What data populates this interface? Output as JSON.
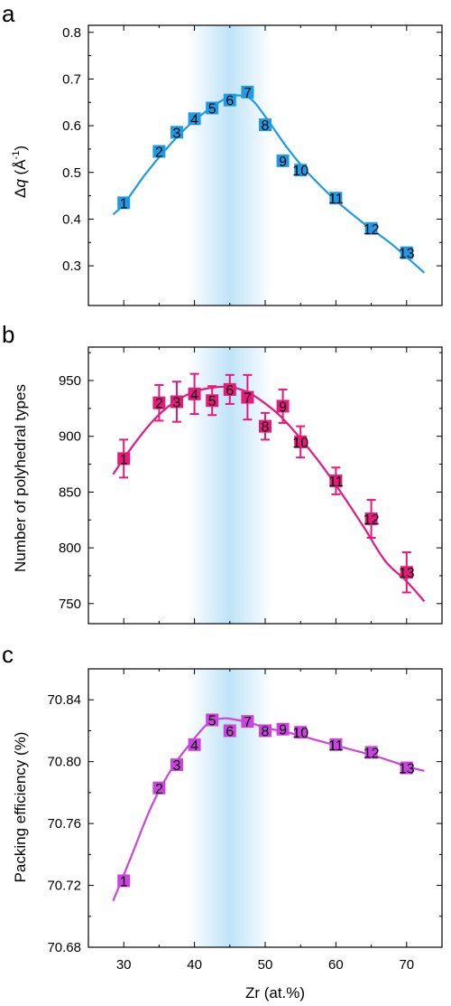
{
  "figure": {
    "x_axis_label": "Zr (at.%)",
    "x_ticks": [
      "30",
      "40",
      "50",
      "60",
      "70"
    ],
    "highlight_band": {
      "x_min": 39,
      "x_max": 51,
      "x_center": 45.5,
      "color": "#bfe3f8"
    }
  },
  "chart_data": [
    {
      "type": "scatter",
      "panel_letter": "a",
      "ylabel": "Δq (Å⁻¹)",
      "ylabel_parts": {
        "delta": "Δ",
        "q": "q",
        "unit_open": " (Å",
        "sup": "-1",
        "unit_close": ")"
      },
      "xlim": [
        25,
        75
      ],
      "ylim": [
        0.215,
        0.815
      ],
      "y_ticks": [
        "0.3",
        "0.4",
        "0.5",
        "0.6",
        "0.7",
        "0.8"
      ],
      "grid": false,
      "color": "#1f9be6",
      "points": [
        {
          "label": "1",
          "x": 30,
          "y": 0.435
        },
        {
          "label": "2",
          "x": 35,
          "y": 0.545
        },
        {
          "label": "3",
          "x": 37.5,
          "y": 0.586
        },
        {
          "label": "4",
          "x": 40,
          "y": 0.615
        },
        {
          "label": "5",
          "x": 42.5,
          "y": 0.638
        },
        {
          "label": "6",
          "x": 45,
          "y": 0.655
        },
        {
          "label": "7",
          "x": 47.5,
          "y": 0.672
        },
        {
          "label": "8",
          "x": 50,
          "y": 0.602
        },
        {
          "label": "9",
          "x": 52.5,
          "y": 0.525
        },
        {
          "label": "10",
          "x": 55,
          "y": 0.505
        },
        {
          "label": "11",
          "x": 60,
          "y": 0.445
        },
        {
          "label": "12",
          "x": 65,
          "y": 0.38
        },
        {
          "label": "13",
          "x": 70,
          "y": 0.328
        }
      ],
      "fit_curve": {
        "x": [
          28.5,
          30,
          33,
          36,
          39,
          42,
          44,
          46,
          48,
          50,
          53,
          56,
          60,
          64,
          68,
          72.5
        ],
        "y": [
          0.41,
          0.432,
          0.495,
          0.55,
          0.598,
          0.635,
          0.655,
          0.665,
          0.657,
          0.62,
          0.555,
          0.5,
          0.44,
          0.39,
          0.345,
          0.285
        ]
      }
    },
    {
      "type": "scatter",
      "panel_letter": "b",
      "ylabel": "Number of polyhedral types",
      "xlim": [
        25,
        75
      ],
      "ylim": [
        732,
        980
      ],
      "y_ticks": [
        "750",
        "800",
        "850",
        "900",
        "950"
      ],
      "grid": false,
      "color": "#e6197d",
      "points": [
        {
          "label": "1",
          "x": 30,
          "y": 880,
          "err": 17
        },
        {
          "label": "2",
          "x": 35,
          "y": 930,
          "err": 16
        },
        {
          "label": "3",
          "x": 37.5,
          "y": 931,
          "err": 18
        },
        {
          "label": "4",
          "x": 40,
          "y": 938,
          "err": 18
        },
        {
          "label": "5",
          "x": 42.5,
          "y": 932,
          "err": 13
        },
        {
          "label": "6",
          "x": 45,
          "y": 942,
          "err": 13
        },
        {
          "label": "7",
          "x": 47.5,
          "y": 935,
          "err": 20
        },
        {
          "label": "8",
          "x": 50,
          "y": 909,
          "err": 12
        },
        {
          "label": "9",
          "x": 52.5,
          "y": 927,
          "err": 15
        },
        {
          "label": "10",
          "x": 55,
          "y": 895,
          "err": 14
        },
        {
          "label": "11",
          "x": 60,
          "y": 860,
          "err": 12
        },
        {
          "label": "12",
          "x": 65,
          "y": 826,
          "err": 17
        },
        {
          "label": "13",
          "x": 70,
          "y": 778,
          "err": 18
        }
      ],
      "fit_curve": {
        "x": [
          28.5,
          31,
          34,
          37,
          40,
          43,
          45,
          47,
          49,
          52,
          55,
          58,
          61,
          64,
          67,
          70,
          72.5
        ],
        "y": [
          866,
          889,
          913,
          930,
          940,
          944,
          944,
          941,
          934,
          919,
          898,
          874,
          847,
          818,
          788,
          770,
          752
        ]
      }
    },
    {
      "type": "scatter",
      "panel_letter": "c",
      "ylabel": "Packing efficiency (%)",
      "xlim": [
        25,
        75
      ],
      "ylim": [
        70.68,
        70.86
      ],
      "y_ticks": [
        "70.68",
        "70.72",
        "70.76",
        "70.80",
        "70.84"
      ],
      "grid": false,
      "color": "#cc44e0",
      "points": [
        {
          "label": "1",
          "x": 30,
          "y": 70.723
        },
        {
          "label": "2",
          "x": 35,
          "y": 70.783
        },
        {
          "label": "3",
          "x": 37.5,
          "y": 70.798
        },
        {
          "label": "4",
          "x": 40,
          "y": 70.811
        },
        {
          "label": "5",
          "x": 42.5,
          "y": 70.827
        },
        {
          "label": "6",
          "x": 45,
          "y": 70.82
        },
        {
          "label": "7",
          "x": 47.5,
          "y": 70.826
        },
        {
          "label": "8",
          "x": 50,
          "y": 70.82
        },
        {
          "label": "9",
          "x": 52.5,
          "y": 70.821
        },
        {
          "label": "10",
          "x": 55,
          "y": 70.819
        },
        {
          "label": "11",
          "x": 60,
          "y": 70.811
        },
        {
          "label": "12",
          "x": 65,
          "y": 70.806
        },
        {
          "label": "13",
          "x": 70,
          "y": 70.796
        }
      ],
      "fit_curve": {
        "x": [
          28.5,
          31,
          34,
          37,
          40,
          42,
          44,
          46,
          48,
          50,
          54,
          58,
          62,
          66,
          70,
          72.5
        ],
        "y": [
          70.71,
          70.738,
          70.772,
          70.797,
          70.815,
          70.825,
          70.828,
          70.827,
          70.825,
          70.822,
          70.818,
          70.813,
          70.808,
          70.803,
          70.797,
          70.794
        ]
      }
    }
  ]
}
